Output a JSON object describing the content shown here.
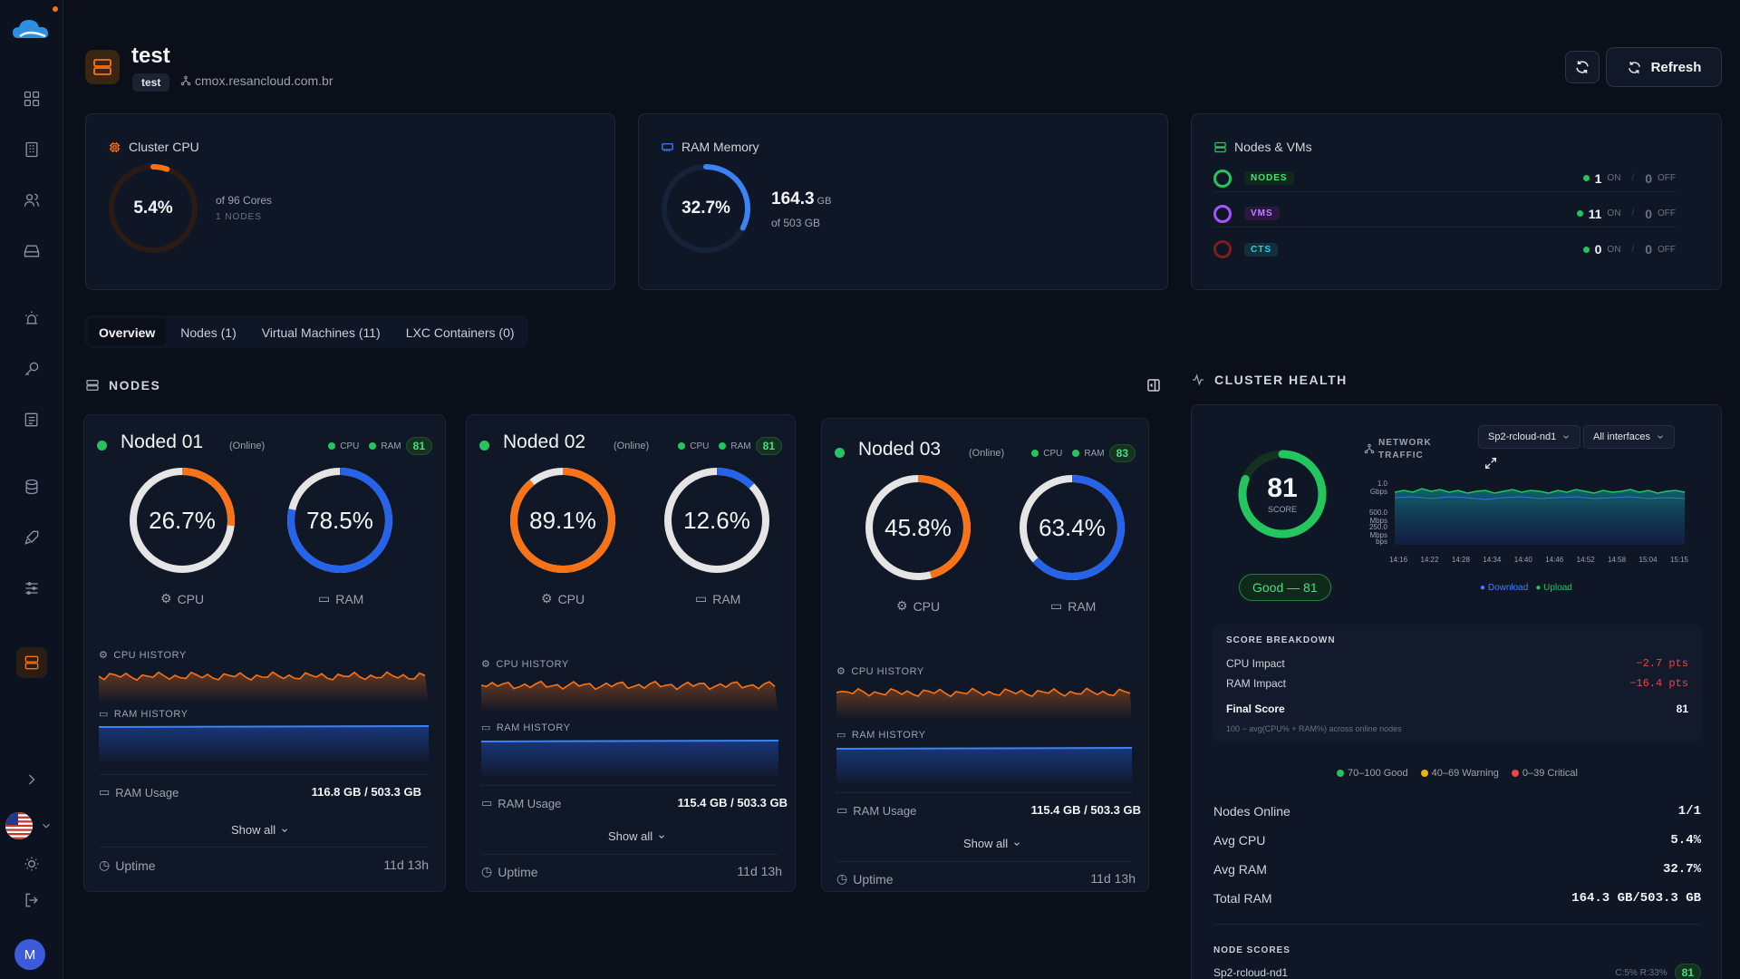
{
  "header": {
    "title": "test",
    "badge": "test",
    "host": "cmox.resancloud.com.br",
    "refresh_label": "Refresh"
  },
  "cluster_cpu": {
    "title": "Cluster CPU",
    "value": "5.4%",
    "percent": 5.4,
    "cores": "of 96 Cores",
    "nodes": "1 NODES"
  },
  "ram_memory": {
    "title": "RAM Memory",
    "value": "32.7%",
    "percent": 32.7,
    "used": "164.3",
    "used_unit": "GB",
    "total": "of 503 GB"
  },
  "nodes_vms": {
    "title": "Nodes & VMs",
    "rows": [
      {
        "label": "NODES",
        "on": "1",
        "on_label": "ON",
        "off": "0",
        "off_label": "OFF",
        "color": "#22c55e"
      },
      {
        "label": "VMS",
        "on": "11",
        "on_label": "ON",
        "off": "0",
        "off_label": "OFF",
        "color": "#a855f7"
      },
      {
        "label": "CTS",
        "on": "0",
        "on_label": "ON",
        "off": "0",
        "off_label": "OFF",
        "color": "#7f1d1d"
      }
    ]
  },
  "tabs": [
    "Overview",
    "Nodes (1)",
    "Virtual Machines (11)",
    "LXC Containers (0)"
  ],
  "nodes_section": {
    "title": "NODES"
  },
  "node_cards": [
    {
      "name": "Noded 01",
      "status": "(Online)",
      "cpu_label": "CPU",
      "ram_label": "RAM",
      "score": "81",
      "cpu": "26.7%",
      "cpu_pct": 26.7,
      "ram": "78.5%",
      "ram_pct": 78.5,
      "cpu_history": "CPU HISTORY",
      "ram_history": "RAM HISTORY",
      "ram_usage_label": "RAM Usage",
      "ram_usage": "116.8 GB / 503.3 GB",
      "show_all": "Show all",
      "uptime_label": "Uptime",
      "uptime": "11d 13h"
    },
    {
      "name": "Noded 02",
      "status": "(Online)",
      "cpu_label": "CPU",
      "ram_label": "RAM",
      "score": "81",
      "cpu": "89.1%",
      "cpu_pct": 89.1,
      "ram": "12.6%",
      "ram_pct": 12.6,
      "cpu_history": "CPU HISTORY",
      "ram_history": "RAM HISTORY",
      "ram_usage_label": "RAM Usage",
      "ram_usage": "115.4 GB / 503.3 GB",
      "show_all": "Show all",
      "uptime_label": "Uptime",
      "uptime": "11d 13h"
    },
    {
      "name": "Noded 03",
      "status": "(Online)",
      "cpu_label": "CPU",
      "ram_label": "RAM",
      "score": "83",
      "cpu": "45.8%",
      "cpu_pct": 45.8,
      "ram": "63.4%",
      "ram_pct": 63.4,
      "cpu_history": "CPU HISTORY",
      "ram_history": "RAM HISTORY",
      "ram_usage_label": "RAM Usage",
      "ram_usage": "115.4 GB / 503.3 GB",
      "show_all": "Show all",
      "uptime_label": "Uptime",
      "uptime": "11d 13h"
    }
  ],
  "cluster_health": {
    "title": "CLUSTER HEALTH",
    "score": "81",
    "score_pct": 81,
    "score_label": "SCORE",
    "good_label": "Good — 81",
    "network_title_1": "NETWORK",
    "network_title_2": "TRAFFIC",
    "node_select": "Sp2-rcloud-nd1",
    "iface_select": "All interfaces",
    "y_ticks": [
      "1.0 Gbps",
      "500.0 Mbps",
      "250.0 Mbps",
      "bps"
    ],
    "x_ticks": [
      "14:16",
      "14:22",
      "14:28",
      "14:34",
      "14:40",
      "14:46",
      "14:52",
      "14:58",
      "15:04",
      "15:15"
    ],
    "legend_download": "Download",
    "legend_upload": "Upload",
    "breakdown_title": "SCORE BREAKDOWN",
    "cpu_impact_label": "CPU Impact",
    "cpu_impact": "−2.7 pts",
    "ram_impact_label": "RAM Impact",
    "ram_impact": "−16.4 pts",
    "final_label": "Final Score",
    "final": "81",
    "formula": "100 − avg(CPU% + RAM%) across online nodes",
    "thr_good": "70–100 Good",
    "thr_warn": "40–69 Warning",
    "thr_crit": "0–39 Critical",
    "summary": [
      {
        "label": "Nodes Online",
        "value": "1/1"
      },
      {
        "label": "Avg CPU",
        "value": "5.4%"
      },
      {
        "label": "Avg RAM",
        "value": "32.7%"
      },
      {
        "label": "Total RAM",
        "value": "164.3 GB/503.3 GB"
      }
    ],
    "node_scores_title": "NODE SCORES",
    "node_score_name": "Sp2-rcloud-nd1",
    "node_score_meta": "C:5% R:33%",
    "node_score_value": "81"
  },
  "colors": {
    "accent": "#f97316",
    "cpu": "#f97316",
    "ram": "#3b82f6",
    "good": "#22c55e",
    "warn": "#eab308",
    "crit": "#ef4444"
  },
  "sidebar_icons": [
    "dashboard-icon",
    "building-icon",
    "users-icon",
    "drive-icon",
    "alarm-icon",
    "key-icon",
    "notes-icon",
    "database-icon",
    "rocket-icon",
    "sliders-icon",
    "server-icon"
  ]
}
